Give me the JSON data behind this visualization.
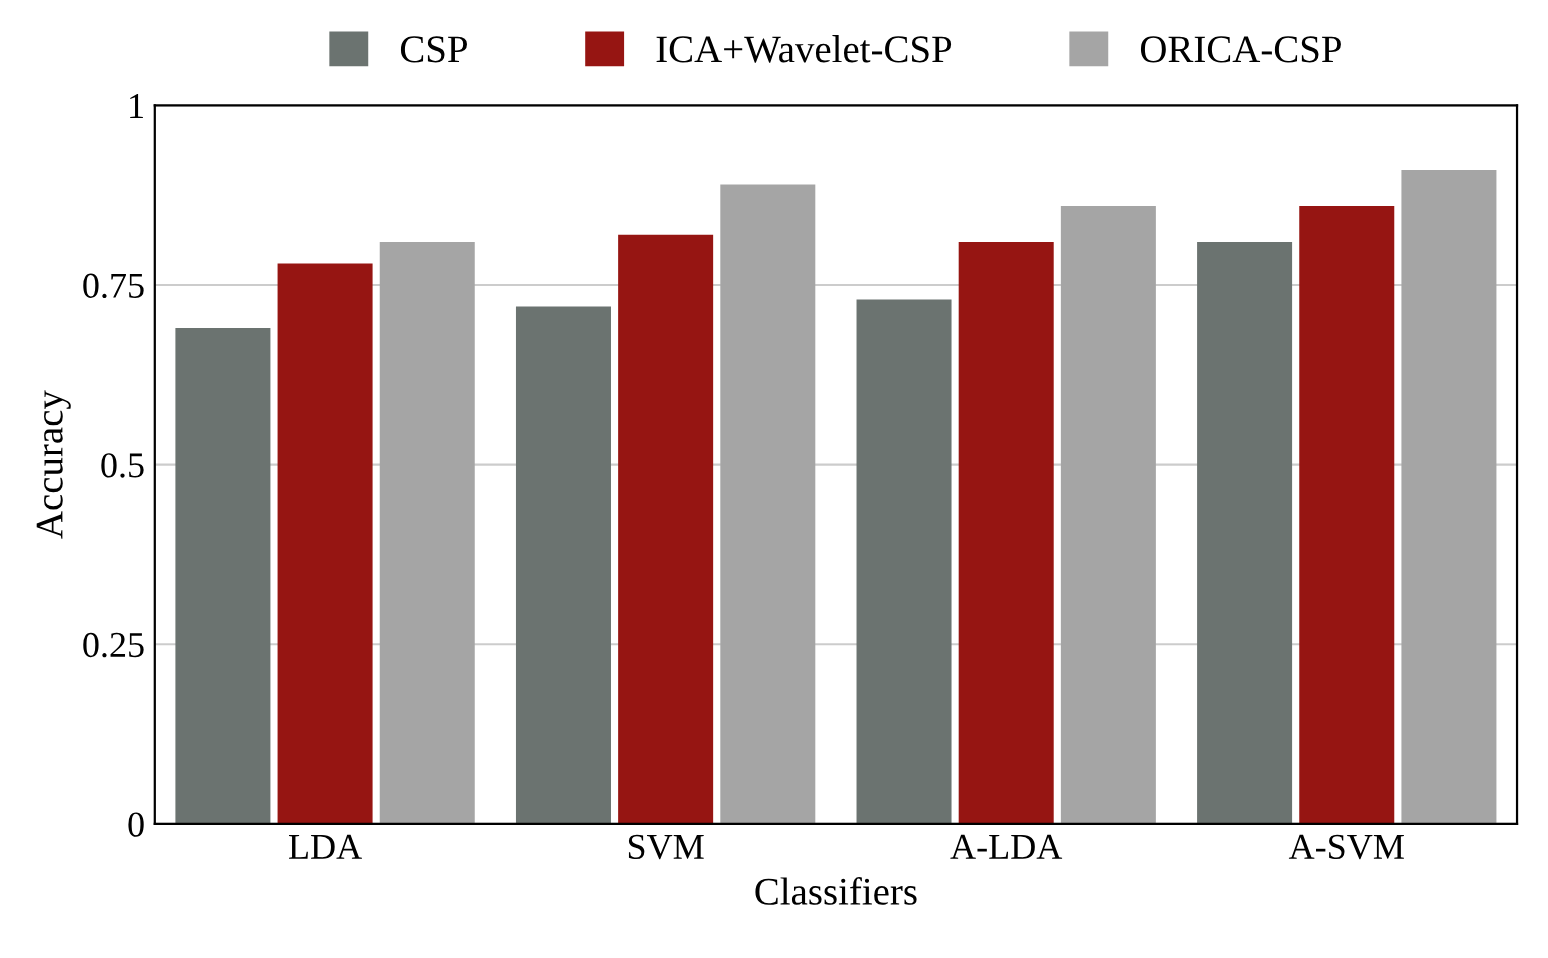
{
  "chart_data": {
    "type": "bar",
    "xlabel": "Classifiers",
    "ylabel": "Accuracy",
    "categories": [
      "LDA",
      "SVM",
      "A-LDA",
      "A-SVM"
    ],
    "series": [
      {
        "name": "CSP",
        "color": "#6b7370",
        "values": [
          0.69,
          0.72,
          0.73,
          0.81
        ]
      },
      {
        "name": "ICA+Wavelet-CSP",
        "color": "#961512",
        "values": [
          0.78,
          0.82,
          0.81,
          0.86
        ]
      },
      {
        "name": "ORICA-CSP",
        "color": "#a5a5a5",
        "values": [
          0.81,
          0.89,
          0.86,
          0.91
        ]
      }
    ],
    "ylim": [
      0,
      1
    ],
    "yticks": [
      0,
      0.25,
      0.5,
      0.75,
      1
    ],
    "grid": "y",
    "legend": "top"
  }
}
